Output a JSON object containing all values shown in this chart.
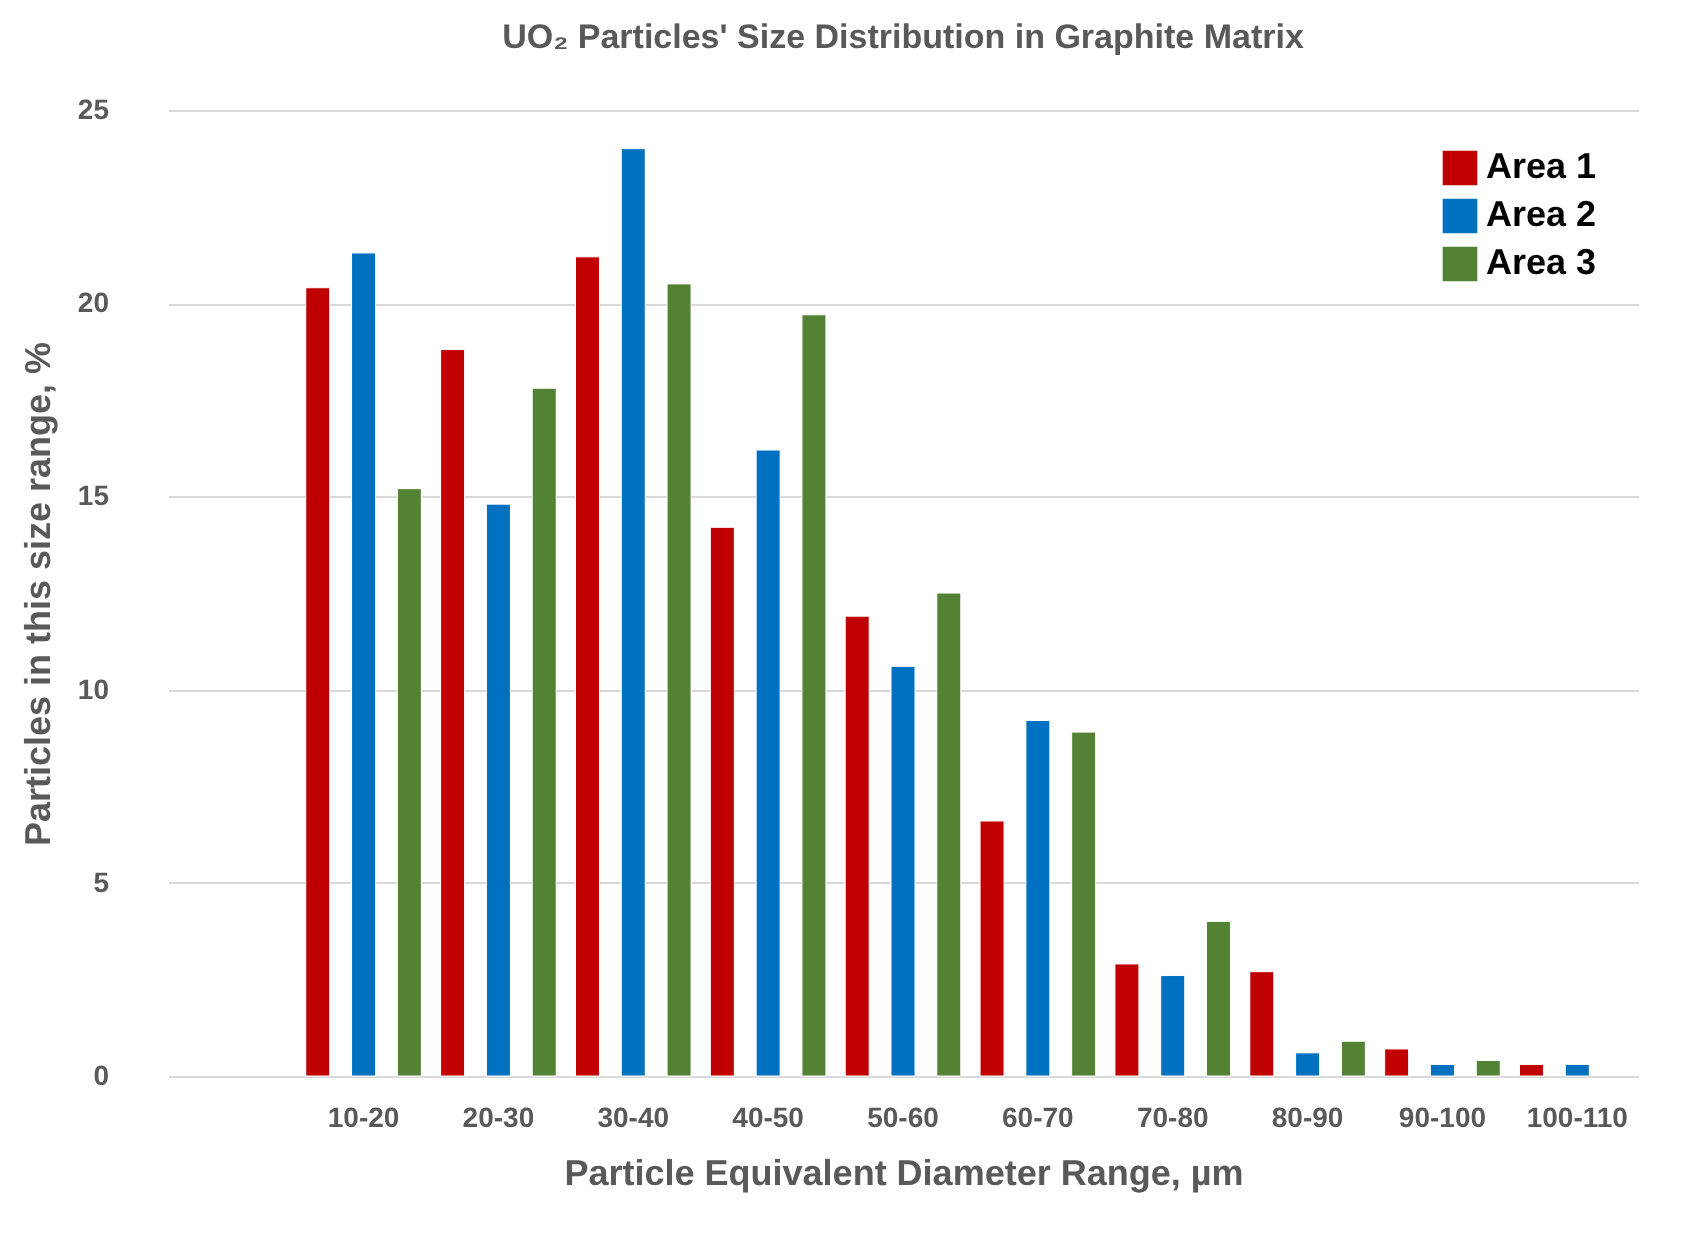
{
  "chart_data": {
    "type": "bar",
    "title": "UO₂ Particles' Size Distribution in Graphite Matrix",
    "xlabel": "Particle Equivalent Diameter Range, µm",
    "ylabel": "Particles in this size range, %",
    "categories": [
      null,
      "10-20",
      "20-30",
      "30-40",
      "40-50",
      "50-60",
      "60-70",
      "70-80",
      "80-90",
      "90-100",
      "100-110"
    ],
    "series": [
      {
        "name": "Area 1",
        "color": "#c00000",
        "values": [
          null,
          20.4,
          18.8,
          21.2,
          14.2,
          11.9,
          6.6,
          2.9,
          2.7,
          0.7,
          0.3
        ]
      },
      {
        "name": "Area 2",
        "color": "#0070c0",
        "values": [
          null,
          21.3,
          14.8,
          24.0,
          16.2,
          10.6,
          9.2,
          2.6,
          0.6,
          0.3,
          0.3
        ]
      },
      {
        "name": "Area 3",
        "color": "#548235",
        "values": [
          null,
          15.2,
          17.8,
          20.5,
          19.7,
          12.5,
          8.9,
          4.0,
          0.9,
          0.4,
          null
        ]
      }
    ],
    "ylim": [
      0,
      25
    ],
    "yticks": [
      0,
      5,
      10,
      15,
      20,
      25
    ],
    "grid": "y",
    "legend": "top right"
  }
}
